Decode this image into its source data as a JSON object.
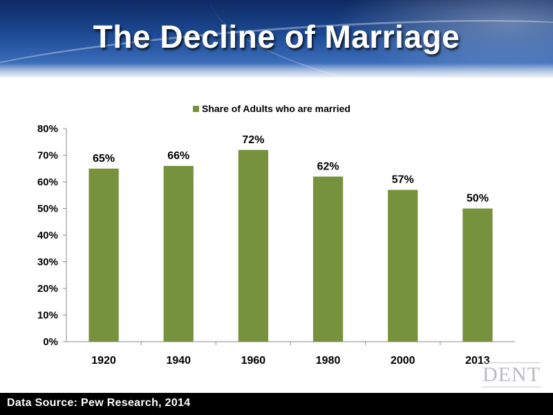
{
  "slide": {
    "title": "The Decline of Marriage",
    "source": "Data Source: Pew Research, 2014",
    "logo_text": "DENT"
  },
  "colors": {
    "bar": "#76923c",
    "header_top": "#0d2a63",
    "footer": "#000000"
  },
  "chart_data": {
    "type": "bar",
    "categories": [
      "1920",
      "1940",
      "1960",
      "1980",
      "2000",
      "2013"
    ],
    "series": [
      {
        "name": "Share of Adults who are married",
        "values": [
          65,
          66,
          72,
          62,
          57,
          50
        ]
      }
    ],
    "data_labels": [
      "65%",
      "66%",
      "72%",
      "62%",
      "57%",
      "50%"
    ],
    "ylim": [
      0,
      80
    ],
    "yticks": [
      "0%",
      "10%",
      "20%",
      "30%",
      "40%",
      "50%",
      "60%",
      "70%",
      "80%"
    ],
    "grid": false,
    "legend": "top"
  }
}
